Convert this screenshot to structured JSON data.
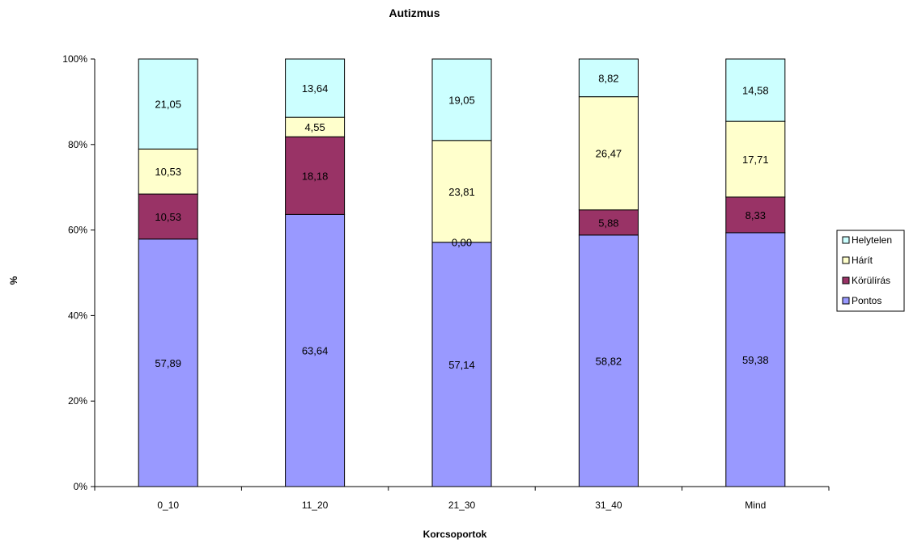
{
  "chart_data": {
    "type": "bar",
    "stacked": true,
    "percent_stacked": true,
    "title": "Autizmus",
    "xlabel": "Korcsoportok",
    "ylabel": "%",
    "ylim": [
      0,
      100
    ],
    "y_ticks": [
      "0%",
      "20%",
      "40%",
      "60%",
      "80%",
      "100%"
    ],
    "y_tick_values": [
      0,
      20,
      40,
      60,
      80,
      100
    ],
    "categories": [
      "0_10",
      "11_20",
      "21_30",
      "31_40",
      "Mind"
    ],
    "series": [
      {
        "name": "Pontos",
        "color": "#9999FF",
        "values": [
          57.89,
          63.64,
          57.14,
          58.82,
          59.38
        ],
        "labels": [
          "57,89",
          "63,64",
          "57,14",
          "58,82",
          "59,38"
        ]
      },
      {
        "name": "Körülírás",
        "color": "#993366",
        "values": [
          10.53,
          18.18,
          0.0,
          5.88,
          8.33
        ],
        "labels": [
          "10,53",
          "18,18",
          "0,00",
          "5,88",
          "8,33"
        ]
      },
      {
        "name": "Hárít",
        "color": "#FFFFCC",
        "values": [
          10.53,
          4.55,
          23.81,
          26.47,
          17.71
        ],
        "labels": [
          "10,53",
          "4,55",
          "23,81",
          "26,47",
          "17,71"
        ]
      },
      {
        "name": "Helytelen",
        "color": "#CCFFFF",
        "values": [
          21.05,
          13.64,
          19.05,
          8.82,
          14.58
        ],
        "labels": [
          "21,05",
          "13,64",
          "19,05",
          "8,82",
          "14,58"
        ]
      }
    ],
    "legend": {
      "position": "right",
      "order": [
        "Helytelen",
        "Hárít",
        "Körülírás",
        "Pontos"
      ]
    },
    "grid": false
  }
}
